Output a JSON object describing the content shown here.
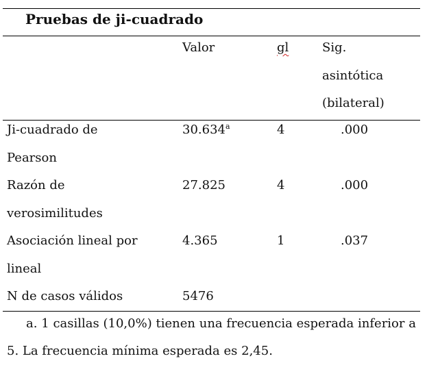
{
  "table": {
    "title": "Pruebas de ji-cuadrado",
    "headers": {
      "label": "",
      "valor": "Valor",
      "gl": "gl",
      "sig_line1": "Sig.",
      "sig_line2": "asintótica",
      "sig_line3": "(bilateral)"
    },
    "rows": [
      {
        "label_line1": "Ji-cuadrado de",
        "label_line2": "Pearson",
        "valor": "30.634",
        "valor_note": "a",
        "gl": "4",
        "sig": ".000"
      },
      {
        "label_line1": "Razón de",
        "label_line2": "verosimilitudes",
        "valor": "27.825",
        "valor_note": "",
        "gl": "4",
        "sig": ".000"
      },
      {
        "label_line1": "Asociación lineal por",
        "label_line2": "lineal",
        "valor": "4.365",
        "valor_note": "",
        "gl": "1",
        "sig": ".037"
      },
      {
        "label_line1": "N de casos válidos",
        "label_line2": "",
        "valor": "5476",
        "valor_note": "",
        "gl": "",
        "sig": ""
      }
    ],
    "footnote": "a. 1 casillas (10,0%) tienen una frecuencia esperada inferior a 5. La frecuencia mínima esperada es 2,45."
  }
}
